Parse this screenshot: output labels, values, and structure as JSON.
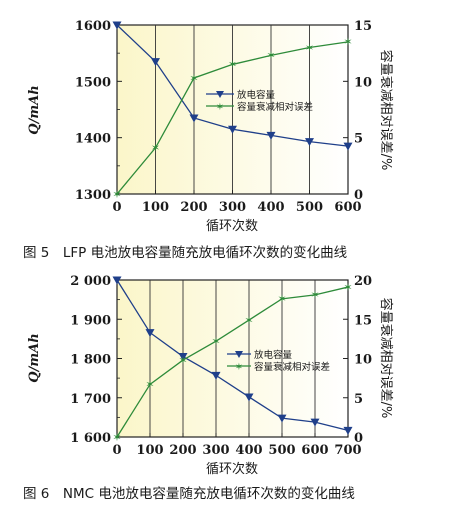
{
  "chart_data": [
    {
      "type": "line",
      "caption": "图 5　LFP 电池放电容量随充放电循环次数的变化曲线",
      "xlabel": "循环次数",
      "ylabel": "Q/mAh",
      "y2label": "容量衰减相对误差/%",
      "x": [
        0,
        100,
        200,
        300,
        400,
        500,
        600
      ],
      "xticks": [
        "0",
        "100",
        "200",
        "300",
        "400",
        "500",
        "600"
      ],
      "xlim": [
        0,
        600
      ],
      "ylim": [
        1300,
        1600
      ],
      "yticks": [
        "1300",
        "1400",
        "1500",
        "1600"
      ],
      "y2lim": [
        0,
        15
      ],
      "y2ticks": [
        "0",
        "5",
        "10",
        "15"
      ],
      "legend_position": "right-center",
      "series": [
        {
          "name": "放电容量",
          "axis": "left",
          "marker": "triangle-down",
          "color": "#1f3f8a",
          "values": [
            1600,
            1535,
            1435,
            1415,
            1404,
            1393,
            1385
          ]
        },
        {
          "name": "容量衰减相对误差",
          "axis": "right",
          "marker": "star",
          "color": "#2e8b3a",
          "values": [
            0,
            4.1,
            10.3,
            11.5,
            12.3,
            13.0,
            13.5
          ]
        }
      ]
    },
    {
      "type": "line",
      "caption": "图 6　NMC 电池放电容量随充放电循环次数的变化曲线",
      "xlabel": "循环次数",
      "ylabel": "Q/mAh",
      "y2label": "容量衰减相对误差/%",
      "x": [
        0,
        100,
        200,
        300,
        400,
        500,
        600,
        700
      ],
      "xticks": [
        "0",
        "100",
        "200",
        "300",
        "400",
        "500",
        "600",
        "700"
      ],
      "xlim": [
        0,
        700
      ],
      "ylim": [
        1600,
        2000
      ],
      "yticks": [
        "1 600",
        "1 700",
        "1 800",
        "1 900",
        "2 000"
      ],
      "y2lim": [
        0,
        20
      ],
      "y2ticks": [
        "0",
        "5",
        "10",
        "15",
        "20"
      ],
      "legend_position": "right-center",
      "series": [
        {
          "name": "放电容量",
          "axis": "left",
          "marker": "triangle-down",
          "color": "#1f3f8a",
          "values": [
            2000,
            1866,
            1805,
            1757,
            1702,
            1648,
            1638,
            1617
          ]
        },
        {
          "name": "容量衰减相对误差",
          "axis": "right",
          "marker": "star",
          "color": "#2e8b3a",
          "values": [
            0,
            6.7,
            9.8,
            12.2,
            14.9,
            17.6,
            18.1,
            19.1
          ]
        }
      ]
    }
  ]
}
